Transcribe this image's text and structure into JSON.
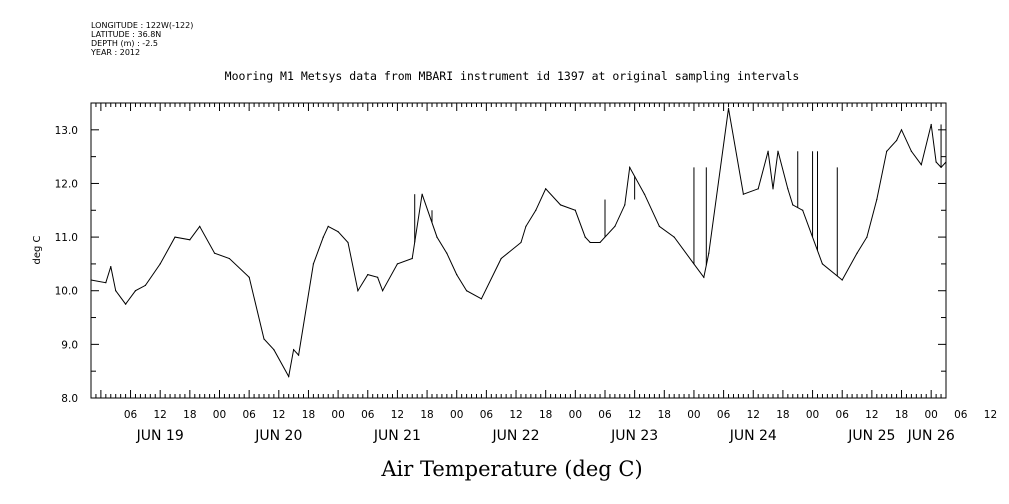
{
  "header": {
    "longitude": "LONGITUDE : 122W(-122)",
    "latitude": "LATITUDE : 36.8N",
    "depth": "DEPTH (m) : -2.5",
    "year": "YEAR : 2012"
  },
  "chart_data": {
    "type": "line",
    "title": "Mooring M1 Metsys data from MBARI instrument id 1397 at original sampling intervals",
    "xlabel": "Air Temperature (deg C)",
    "ylabel": "deg C",
    "ylim": [
      8.0,
      13.5
    ],
    "xlim": [
      "2012-06-18T22:00",
      "2012-06-26T03:00"
    ],
    "y_ticks": [
      "8.0",
      "9.0",
      "10.0",
      "11.0",
      "12.0",
      "13.0"
    ],
    "x_hour_ticks": [
      "06",
      "12",
      "18",
      "00",
      "06",
      "12",
      "18",
      "00",
      "06",
      "12",
      "18",
      "00",
      "06",
      "12",
      "18",
      "00",
      "06",
      "12",
      "18",
      "00",
      "06",
      "12",
      "18",
      "00",
      "06",
      "12",
      "18",
      "00",
      "06",
      "12",
      "18",
      "00"
    ],
    "x_date_labels": [
      "JUN 19",
      "JUN 20",
      "JUN 21",
      "JUN 22",
      "JUN 23",
      "JUN 24",
      "JUN 25",
      "JUN 26"
    ],
    "grid": false,
    "series": [
      {
        "x": [
          "2012-06-18T22:00",
          "2012-06-19T01:00",
          "2012-06-19T02:00",
          "2012-06-19T03:00",
          "2012-06-19T05:00",
          "2012-06-19T07:00",
          "2012-06-19T09:00",
          "2012-06-19T12:00",
          "2012-06-19T15:00",
          "2012-06-19T18:00",
          "2012-06-19T20:00",
          "2012-06-19T23:00",
          "2012-06-20T02:00",
          "2012-06-20T06:00",
          "2012-06-20T09:00",
          "2012-06-20T11:00",
          "2012-06-20T14:00",
          "2012-06-20T15:00",
          "2012-06-20T16:00",
          "2012-06-20T19:00",
          "2012-06-20T21:00",
          "2012-06-20T22:00",
          "2012-06-21T00:00",
          "2012-06-21T02:00",
          "2012-06-21T04:00",
          "2012-06-21T06:00",
          "2012-06-21T08:00",
          "2012-06-21T09:00",
          "2012-06-21T12:00",
          "2012-06-21T15:00",
          "2012-06-21T17:00",
          "2012-06-21T20:00",
          "2012-06-21T22:00",
          "2012-06-22T00:00",
          "2012-06-22T02:00",
          "2012-06-22T05:00",
          "2012-06-22T09:00",
          "2012-06-22T13:00",
          "2012-06-22T14:00",
          "2012-06-22T16:00",
          "2012-06-22T18:00",
          "2012-06-22T21:00",
          "2012-06-23T00:00",
          "2012-06-23T02:00",
          "2012-06-23T03:00",
          "2012-06-23T05:00",
          "2012-06-23T08:00",
          "2012-06-23T10:00",
          "2012-06-23T11:00",
          "2012-06-23T14:00",
          "2012-06-23T17:00",
          "2012-06-23T20:00",
          "2012-06-24T00:00",
          "2012-06-24T02:00",
          "2012-06-24T03:00",
          "2012-06-24T07:00",
          "2012-06-24T10:00",
          "2012-06-24T13:00",
          "2012-06-24T15:00",
          "2012-06-24T16:00",
          "2012-06-24T17:00",
          "2012-06-24T19:00",
          "2012-06-24T20:00",
          "2012-06-24T22:00",
          "2012-06-25T02:00",
          "2012-06-25T06:00",
          "2012-06-25T09:00",
          "2012-06-25T11:00",
          "2012-06-25T13:00",
          "2012-06-25T15:00",
          "2012-06-25T17:00",
          "2012-06-25T18:00",
          "2012-06-25T20:00",
          "2012-06-25T22:00",
          "2012-06-26T00:00",
          "2012-06-26T01:00",
          "2012-06-26T02:00",
          "2012-06-26T03:00"
        ],
        "y": [
          10.2,
          10.15,
          10.45,
          10.0,
          9.75,
          10.0,
          10.1,
          10.5,
          11.0,
          10.95,
          11.2,
          10.7,
          10.6,
          10.25,
          9.1,
          8.9,
          8.4,
          8.9,
          8.8,
          10.5,
          11.0,
          11.2,
          11.1,
          10.9,
          10.0,
          10.3,
          10.25,
          10.0,
          10.5,
          10.6,
          11.8,
          11.0,
          10.7,
          10.3,
          10.0,
          9.85,
          10.6,
          10.9,
          11.2,
          11.5,
          11.9,
          11.6,
          11.5,
          11.0,
          10.9,
          10.9,
          11.2,
          11.6,
          12.3,
          11.8,
          11.2,
          11.0,
          10.5,
          10.25,
          10.7,
          13.4,
          11.8,
          11.9,
          12.6,
          11.9,
          12.6,
          11.9,
          11.6,
          11.5,
          10.5,
          10.2,
          10.7,
          11.0,
          11.7,
          12.6,
          12.8,
          13.0,
          12.6,
          12.35,
          13.1,
          12.4,
          12.3,
          12.4
        ],
        "spikes": [
          {
            "x": "2012-06-21T15:30",
            "y": 11.8
          },
          {
            "x": "2012-06-21T19:00",
            "y": 11.5
          },
          {
            "x": "2012-06-23T06:00",
            "y": 11.7
          },
          {
            "x": "2012-06-23T12:00",
            "y": 11.7
          },
          {
            "x": "2012-06-24T00:00",
            "y": 12.3
          },
          {
            "x": "2012-06-24T02:30",
            "y": 12.3
          },
          {
            "x": "2012-06-24T21:00",
            "y": 12.6
          },
          {
            "x": "2012-06-25T00:00",
            "y": 12.6
          },
          {
            "x": "2012-06-25T01:00",
            "y": 12.6
          },
          {
            "x": "2012-06-25T05:00",
            "y": 12.3
          },
          {
            "x": "2012-06-26T02:00",
            "y": 13.1
          }
        ]
      }
    ]
  }
}
